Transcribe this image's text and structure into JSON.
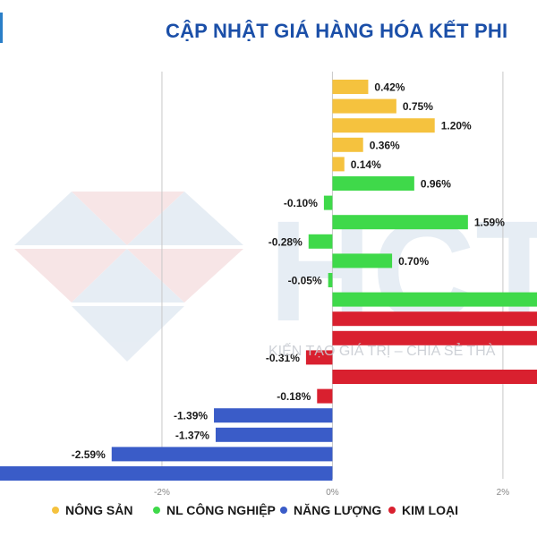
{
  "header": {
    "title": "CẬP NHẬT GIÁ HÀNG HÓA KẾT PHI"
  },
  "watermark": {
    "text": "KIẾN TẠO GIÁ TRỊ – CHIA SẺ THÀ",
    "logo_letters": "HCT"
  },
  "colors": {
    "nong_san": "#f5c23e",
    "nl_cong_nghiep": "#3fd94a",
    "nang_luong": "#3a5cc8",
    "kim_loai": "#d9202f",
    "title": "#1b4fa8"
  },
  "chart_data": {
    "type": "bar",
    "orientation": "horizontal",
    "title": "CẬP NHẬT GIÁ HÀNG HÓA KẾT PHI",
    "xlim": [
      -3.9,
      2.4
    ],
    "x_ticks": [
      -2,
      0,
      2
    ],
    "x_tick_labels": [
      "-2%",
      "0%",
      "2%"
    ],
    "grid": true,
    "legend_position": "bottom",
    "series": [
      {
        "name": "NÔNG SẢN",
        "color": "#f5c23e"
      },
      {
        "name": "NL CÔNG NGHIỆP",
        "color": "#3fd94a"
      },
      {
        "name": "NĂNG LƯỢNG",
        "color": "#3a5cc8"
      },
      {
        "name": "KIM LOẠI",
        "color": "#d9202f"
      }
    ],
    "bars": [
      {
        "series": 0,
        "value": 0.42,
        "label": "0.42%"
      },
      {
        "series": 0,
        "value": 0.75,
        "label": "0.75%"
      },
      {
        "series": 0,
        "value": 1.2,
        "label": "1.20%"
      },
      {
        "series": 0,
        "value": 0.36,
        "label": "0.36%"
      },
      {
        "series": 0,
        "value": 0.14,
        "label": "0.14%"
      },
      {
        "series": 1,
        "value": 0.96,
        "label": "0.96%"
      },
      {
        "series": 1,
        "value": -0.1,
        "label": "-0.10%"
      },
      {
        "series": 1,
        "value": 1.59,
        "label": "1.59%"
      },
      {
        "series": 1,
        "value": -0.28,
        "label": "-0.28%"
      },
      {
        "series": 1,
        "value": 0.7,
        "label": "0.70%"
      },
      {
        "series": 1,
        "value": -0.05,
        "label": "-0.05%"
      },
      {
        "series": 1,
        "value": 2.4,
        "label": ""
      },
      {
        "series": 3,
        "value": 2.4,
        "label": ""
      },
      {
        "series": 3,
        "value": 2.4,
        "label": ""
      },
      {
        "series": 3,
        "value": -0.31,
        "label": "-0.31%"
      },
      {
        "series": 3,
        "value": 2.4,
        "label": ""
      },
      {
        "series": 3,
        "value": -0.18,
        "label": "-0.18%"
      },
      {
        "series": 2,
        "value": -1.39,
        "label": "-1.39%"
      },
      {
        "series": 2,
        "value": -1.37,
        "label": "-1.37%"
      },
      {
        "series": 2,
        "value": -2.59,
        "label": "-2.59%"
      },
      {
        "series": 2,
        "value": -3.9,
        "label": ""
      }
    ]
  }
}
